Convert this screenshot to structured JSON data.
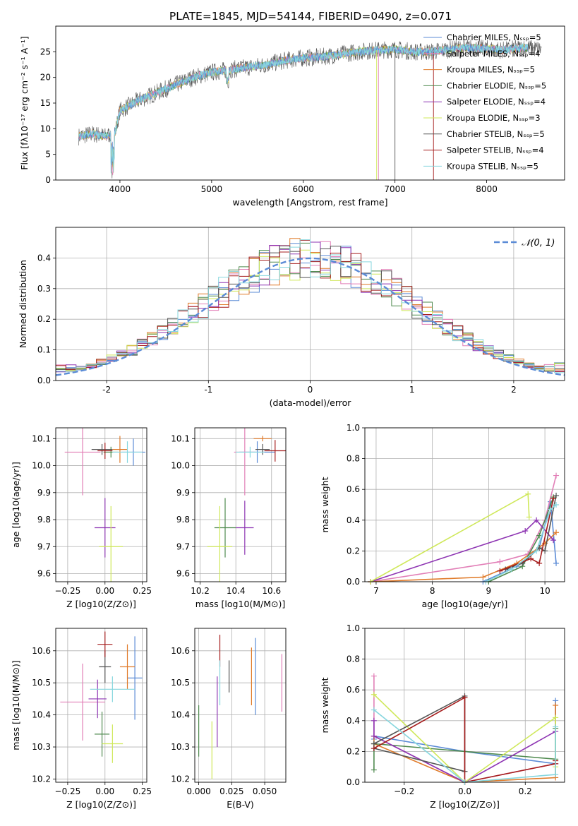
{
  "figure": {
    "title": "PLATE=1845, MJD=54144, FIBERID=0490, z=0.071"
  },
  "colors": {
    "chabrier_miles": "#5b8bd6",
    "salpeter_miles": "#e27fb7",
    "kroupa_miles": "#e07b2a",
    "chabrier_elodie": "#4f8a4f",
    "salpeter_elodie": "#8e35b3",
    "kroupa_elodie": "#cfe85a",
    "chabrier_stelib": "#555555",
    "salpeter_stelib": "#a51c1c",
    "kroupa_stelib": "#86d6de",
    "normal_curve": "#5b8bd6",
    "grid": "#b0b0b0"
  },
  "chart_data": [
    {
      "id": "spectrum",
      "type": "line",
      "xlabel": "wavelength [Angstrom, rest frame]",
      "ylabel": "Flux [fλ10⁻¹⁷ erg cm⁻² s⁻¹ A⁻¹]",
      "xlim": [
        3300,
        8850
      ],
      "ylim": [
        0,
        30
      ],
      "xticks": [
        4000,
        5000,
        6000,
        7000,
        8000
      ],
      "yticks": [
        0,
        5,
        10,
        15,
        20,
        25
      ],
      "grid": false,
      "legend_position": "top-right",
      "legend": [
        "Chabrier MILES, N_SSP=5",
        "Salpeter MILES, N_SSP=4",
        "Kroupa MILES, N_SSP=5",
        "Chabrier ELODIE, N_SSP=5",
        "Salpeter ELODIE, N_SSP=4",
        "Kroupa ELODIE, N_SSP=3",
        "Chabrier STELIB, N_SSP=5",
        "Salpeter STELIB, N_SSP=4",
        "Kroupa STELIB, N_SSP=5"
      ],
      "continuum_x": [
        3550,
        3700,
        3850,
        3950,
        4000,
        4200,
        4400,
        4600,
        4800,
        5000,
        5200,
        5400,
        5600,
        5800,
        6000,
        6200,
        6400,
        6600,
        6800,
        7000,
        7200,
        7400,
        7600,
        7800,
        8000,
        8200,
        8400,
        8600
      ],
      "continuum_y": [
        8.5,
        9,
        8.5,
        9.5,
        13.5,
        15.5,
        17,
        18.5,
        20,
        21,
        21.5,
        22,
        22.5,
        23.3,
        23.8,
        24,
        24.5,
        25,
        25.3,
        25.5,
        25,
        25,
        25.5,
        25.8,
        25.6,
        25.3,
        25.8,
        25.5
      ]
    },
    {
      "id": "residuals",
      "type": "histogram",
      "xlabel": "(data-model)/error",
      "ylabel": "Normed distribution",
      "xlim": [
        -2.5,
        2.5
      ],
      "ylim": [
        0,
        0.5
      ],
      "xticks": [
        -2,
        -1,
        0,
        1,
        2
      ],
      "yticks": [
        0.0,
        0.1,
        0.2,
        0.3,
        0.4
      ],
      "grid": true,
      "legend_position": "top-right",
      "legend": [
        "𝒩(0, 1)"
      ],
      "bin_width": 0.1,
      "peak_value": 0.47
    },
    {
      "id": "age_vs_Z",
      "type": "scatter",
      "xlabel": "Z [log10(Z/Z⊙)]",
      "ylabel": "age  [log10(age/yr)]",
      "xlim": [
        -0.33,
        0.28
      ],
      "ylim": [
        9.57,
        10.14
      ],
      "xticks": [
        -0.25,
        0.0,
        0.25
      ],
      "yticks": [
        9.6,
        9.7,
        9.8,
        9.9,
        10.0,
        10.1
      ],
      "grid": true,
      "points": [
        {
          "model": "chabrier_miles",
          "x": 0.19,
          "y": 10.05,
          "xerr": 0.08,
          "yerr": 0.05
        },
        {
          "model": "salpeter_miles",
          "x": -0.15,
          "y": 10.05,
          "xerr": 0.12,
          "yerr": 0.16
        },
        {
          "model": "kroupa_miles",
          "x": 0.1,
          "y": 10.06,
          "xerr": 0.05,
          "yerr": 0.05
        },
        {
          "model": "chabrier_elodie",
          "x": 0.04,
          "y": 10.05,
          "xerr": 0.05,
          "yerr": 0.02
        },
        {
          "model": "salpeter_elodie",
          "x": 0.0,
          "y": 9.77,
          "xerr": 0.07,
          "yerr": 0.11
        },
        {
          "model": "kroupa_elodie",
          "x": 0.04,
          "y": 9.7,
          "xerr": 0.08,
          "yerr": 0.15
        },
        {
          "model": "chabrier_stelib",
          "x": -0.02,
          "y": 10.06,
          "xerr": 0.07,
          "yerr": 0.02
        },
        {
          "model": "salpeter_stelib",
          "x": 0.0,
          "y": 10.055,
          "xerr": 0.05,
          "yerr": 0.03
        },
        {
          "model": "kroupa_stelib",
          "x": 0.15,
          "y": 10.05,
          "xerr": 0.1,
          "yerr": 0.04
        }
      ]
    },
    {
      "id": "age_vs_mass",
      "type": "scatter",
      "xlabel": "mass [log10(M/M⊙)]",
      "ylabel": "",
      "xlim": [
        10.17,
        10.68
      ],
      "ylim": [
        9.57,
        10.14
      ],
      "xticks": [
        10.2,
        10.4,
        10.6
      ],
      "yticks": [
        9.6,
        9.7,
        9.8,
        9.9,
        10.0,
        10.1
      ],
      "grid": true,
      "points": [
        {
          "model": "chabrier_miles",
          "x": 10.52,
          "y": 10.05,
          "xerr": 0.1,
          "yerr": 0.04
        },
        {
          "model": "salpeter_miles",
          "x": 10.45,
          "y": 10.05,
          "xerr": 0.06,
          "yerr": 0.16
        },
        {
          "model": "kroupa_miles",
          "x": 10.55,
          "y": 10.1,
          "xerr": 0.05,
          "yerr": 0.01
        },
        {
          "model": "chabrier_elodie",
          "x": 10.34,
          "y": 9.77,
          "xerr": 0.06,
          "yerr": 0.11
        },
        {
          "model": "salpeter_elodie",
          "x": 10.45,
          "y": 9.77,
          "xerr": 0.05,
          "yerr": 0.1
        },
        {
          "model": "kroupa_elodie",
          "x": 10.31,
          "y": 9.7,
          "xerr": 0.07,
          "yerr": 0.15
        },
        {
          "model": "chabrier_stelib",
          "x": 10.55,
          "y": 10.06,
          "xerr": 0.04,
          "yerr": 0.02
        },
        {
          "model": "salpeter_stelib",
          "x": 10.62,
          "y": 10.055,
          "xerr": 0.06,
          "yerr": 0.04
        },
        {
          "model": "kroupa_stelib",
          "x": 10.48,
          "y": 10.05,
          "xerr": 0.08,
          "yerr": 0.02
        }
      ]
    },
    {
      "id": "weight_vs_age",
      "type": "line",
      "xlabel": "age  [log10(age/yr)]",
      "ylabel": "mass weight",
      "xlim": [
        6.8,
        10.35
      ],
      "ylim": [
        0,
        1
      ],
      "xticks": [
        7,
        8,
        9,
        10
      ],
      "yticks": [
        0.0,
        0.2,
        0.4,
        0.6,
        0.8,
        1.0
      ],
      "grid": true,
      "series": [
        {
          "model": "chabrier_miles",
          "x": [
            8.9,
            9.5,
            9.9,
            10.1,
            10.2
          ],
          "y": [
            0.0,
            0.1,
            0.22,
            0.52,
            0.12
          ]
        },
        {
          "model": "salpeter_miles",
          "x": [
            6.9,
            9.2,
            9.7,
            10.0,
            10.2
          ],
          "y": [
            0.0,
            0.13,
            0.18,
            0.4,
            0.69
          ]
        },
        {
          "model": "kroupa_miles",
          "x": [
            6.9,
            8.9,
            9.5,
            10.0,
            10.2
          ],
          "y": [
            0.0,
            0.03,
            0.12,
            0.25,
            0.32
          ]
        },
        {
          "model": "chabrier_elodie",
          "x": [
            9.0,
            9.6,
            9.9,
            10.15
          ],
          "y": [
            0.0,
            0.1,
            0.3,
            0.55
          ]
        },
        {
          "model": "salpeter_elodie",
          "x": [
            6.9,
            9.65,
            9.85,
            10.15
          ],
          "y": [
            0.0,
            0.33,
            0.4,
            0.27
          ]
        },
        {
          "model": "kroupa_elodie",
          "x": [
            6.9,
            9.7,
            9.72
          ],
          "y": [
            0.0,
            0.57,
            0.42
          ]
        },
        {
          "model": "chabrier_stelib",
          "x": [
            9.3,
            9.6,
            9.9,
            10.0,
            10.2
          ],
          "y": [
            0.08,
            0.12,
            0.22,
            0.2,
            0.56
          ]
        },
        {
          "model": "salpeter_stelib",
          "x": [
            9.2,
            9.75,
            9.9,
            10.15
          ],
          "y": [
            0.07,
            0.15,
            0.12,
            0.54
          ]
        },
        {
          "model": "kroupa_stelib",
          "x": [
            8.95,
            9.4,
            9.85,
            10.1,
            10.2
          ],
          "y": [
            0.0,
            0.08,
            0.2,
            0.47,
            0.5
          ]
        }
      ]
    },
    {
      "id": "mass_vs_Z",
      "type": "scatter",
      "xlabel": "Z [log10(Z/Z⊙)]",
      "ylabel": "mass [log10(M/M⊙)]",
      "xlim": [
        -0.33,
        0.28
      ],
      "ylim": [
        10.19,
        10.67
      ],
      "xticks": [
        -0.25,
        0.0,
        0.25
      ],
      "yticks": [
        10.2,
        10.3,
        10.4,
        10.5,
        10.6
      ],
      "grid": true,
      "points": [
        {
          "model": "chabrier_miles",
          "x": 0.2,
          "y": 10.515,
          "xerr": 0.05,
          "yerr": 0.13
        },
        {
          "model": "salpeter_miles",
          "x": -0.15,
          "y": 10.44,
          "xerr": 0.15,
          "yerr": 0.12
        },
        {
          "model": "kroupa_miles",
          "x": 0.15,
          "y": 10.55,
          "xerr": 0.05,
          "yerr": 0.07
        },
        {
          "model": "chabrier_elodie",
          "x": -0.02,
          "y": 10.34,
          "xerr": 0.05,
          "yerr": 0.07
        },
        {
          "model": "salpeter_elodie",
          "x": -0.05,
          "y": 10.45,
          "xerr": 0.06,
          "yerr": 0.06
        },
        {
          "model": "kroupa_elodie",
          "x": 0.05,
          "y": 10.31,
          "xerr": 0.07,
          "yerr": 0.06
        },
        {
          "model": "chabrier_stelib",
          "x": 0.0,
          "y": 10.55,
          "xerr": 0.04,
          "yerr": 0.05
        },
        {
          "model": "salpeter_stelib",
          "x": 0.0,
          "y": 10.62,
          "xerr": 0.05,
          "yerr": 0.04
        },
        {
          "model": "kroupa_stelib",
          "x": 0.05,
          "y": 10.48,
          "xerr": 0.15,
          "yerr": 0.04
        }
      ]
    },
    {
      "id": "mass_vs_ebv",
      "type": "scatter",
      "xlabel": "E(B-V)",
      "ylabel": "",
      "xlim": [
        -0.003,
        0.066
      ],
      "ylim": [
        10.19,
        10.67
      ],
      "xticks": [
        0.0,
        0.025,
        0.05
      ],
      "yticks": [
        10.2,
        10.3,
        10.4,
        10.5,
        10.6
      ],
      "grid": true,
      "points": [
        {
          "model": "chabrier_miles",
          "x": 0.043,
          "y": 10.52,
          "xerr": 0,
          "yerr": 0.12
        },
        {
          "model": "salpeter_miles",
          "x": 0.063,
          "y": 10.5,
          "xerr": 0,
          "yerr": 0.09
        },
        {
          "model": "kroupa_miles",
          "x": 0.04,
          "y": 10.52,
          "xerr": 0,
          "yerr": 0.09
        },
        {
          "model": "chabrier_elodie",
          "x": 0.0,
          "y": 10.35,
          "xerr": 0,
          "yerr": 0.08
        },
        {
          "model": "salpeter_elodie",
          "x": 0.014,
          "y": 10.41,
          "xerr": 0,
          "yerr": 0.11
        },
        {
          "model": "kroupa_elodie",
          "x": 0.01,
          "y": 10.29,
          "xerr": 0,
          "yerr": 0.09
        },
        {
          "model": "chabrier_stelib",
          "x": 0.023,
          "y": 10.52,
          "xerr": 0,
          "yerr": 0.05
        },
        {
          "model": "salpeter_stelib",
          "x": 0.016,
          "y": 10.6,
          "xerr": 0,
          "yerr": 0.05
        },
        {
          "model": "kroupa_stelib",
          "x": 0.016,
          "y": 10.5,
          "xerr": 0,
          "yerr": 0.07
        }
      ]
    },
    {
      "id": "weight_vs_Z",
      "type": "line",
      "xlabel": "Z [log10(Z/Z⊙)]",
      "ylabel": "mass weight",
      "xlim": [
        -0.33,
        0.33
      ],
      "ylim": [
        0,
        1
      ],
      "xticks": [
        -0.2,
        0.0,
        0.2
      ],
      "yticks": [
        0.0,
        0.2,
        0.4,
        0.6,
        0.8,
        1.0
      ],
      "grid": true,
      "series": [
        {
          "model": "chabrier_miles",
          "x": [
            -0.3,
            -0.3,
            0.0,
            0.3,
            0.3
          ],
          "y": [
            0.28,
            0.3,
            0.2,
            0.12,
            0.53
          ]
        },
        {
          "model": "salpeter_miles",
          "x": [
            -0.3,
            -0.3,
            0.0,
            0.3
          ],
          "y": [
            0.69,
            0.3,
            0.0,
            0.12
          ]
        },
        {
          "model": "kroupa_miles",
          "x": [
            -0.3,
            -0.3,
            0.0,
            0.3,
            0.3
          ],
          "y": [
            0.3,
            0.25,
            0.0,
            0.03,
            0.5
          ]
        },
        {
          "model": "chabrier_elodie",
          "x": [
            -0.3,
            -0.3,
            0.3,
            0.3
          ],
          "y": [
            0.08,
            0.25,
            0.15,
            0.35
          ]
        },
        {
          "model": "salpeter_elodie",
          "x": [
            -0.3,
            -0.3,
            0.0,
            0.3
          ],
          "y": [
            0.4,
            0.3,
            0.0,
            0.33
          ]
        },
        {
          "model": "kroupa_elodie",
          "x": [
            -0.3,
            0.0,
            0.3,
            0.3
          ],
          "y": [
            0.57,
            0.0,
            0.42,
            0.1
          ]
        },
        {
          "model": "chabrier_stelib",
          "x": [
            -0.3,
            0.0,
            0.0,
            -0.3
          ],
          "y": [
            0.25,
            0.56,
            0.07,
            0.22
          ]
        },
        {
          "model": "salpeter_stelib",
          "x": [
            -0.3,
            0.0,
            0.0,
            0.3,
            0.3
          ],
          "y": [
            0.22,
            0.55,
            0.0,
            0.12,
            0.14
          ]
        },
        {
          "model": "kroupa_stelib",
          "x": [
            -0.3,
            0.0,
            0.3,
            0.3
          ],
          "y": [
            0.47,
            0.0,
            0.05,
            0.36
          ]
        }
      ]
    }
  ]
}
